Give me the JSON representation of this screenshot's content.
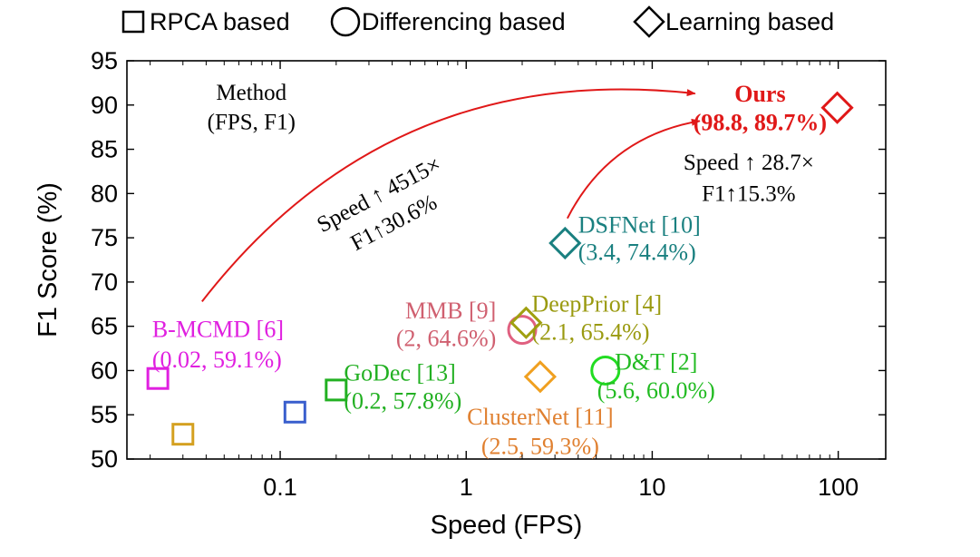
{
  "chart_data": {
    "type": "scatter",
    "xscale": "log",
    "xlim": [
      0.015,
      180
    ],
    "ylim": [
      50,
      95
    ],
    "xlabel": "Speed (FPS)",
    "ylabel": "F1 Score (%)",
    "xticks": [
      0.1,
      1,
      10,
      100
    ],
    "xtick_labels": [
      "0.1",
      "1",
      "10",
      "100"
    ],
    "yticks": [
      50,
      55,
      60,
      65,
      70,
      75,
      80,
      85,
      90,
      95
    ],
    "ytick_labels": [
      "50",
      "55",
      "60",
      "65",
      "70",
      "75",
      "80",
      "85",
      "90",
      "95"
    ],
    "legend": [
      {
        "marker": "square",
        "label": "RPCA based"
      },
      {
        "marker": "circle",
        "label": "Differencing based"
      },
      {
        "marker": "diamond",
        "label": "Learning based"
      }
    ],
    "legend_position": "top",
    "points": [
      {
        "marker": "square",
        "x": 0.022,
        "y": 59.1,
        "color": "#e020e0",
        "label": [
          "B-MCMD [6]",
          "(0.02, 59.1%)"
        ],
        "label_color": "#e020e0",
        "label_anchor": "left",
        "lx": 0.0205,
        "ly": [
          64.7,
          61.3
        ]
      },
      {
        "marker": "square",
        "x": 0.03,
        "y": 52.8,
        "color": "#d4a020"
      },
      {
        "marker": "square",
        "x": 0.12,
        "y": 55.3,
        "color": "#3a5fcd"
      },
      {
        "marker": "square",
        "x": 0.2,
        "y": 57.8,
        "color": "#22b022",
        "label": [
          "GoDec [13]",
          "(0.2, 57.8%)"
        ],
        "label_color": "#22b022",
        "label_anchor": "left",
        "lx": 0.22,
        "ly": [
          59.8,
          56.6
        ]
      },
      {
        "marker": "circle",
        "x": 2.0,
        "y": 64.6,
        "color": "#e06080",
        "label": [
          "MMB [9]",
          "(2, 64.6%)"
        ],
        "label_color": "#d06070",
        "label_anchor": "end",
        "lx": 1.45,
        "ly": [
          66.8,
          63.7
        ]
      },
      {
        "marker": "diamond",
        "x": 2.1,
        "y": 65.4,
        "color": "#a0a010",
        "label": [
          "DeepPrior [4]",
          "(2.1, 65.4%)"
        ],
        "label_color": "#9a9a10",
        "label_anchor": "left",
        "lx": 2.25,
        "ly": [
          67.6,
          64.4
        ]
      },
      {
        "marker": "diamond",
        "x": 2.5,
        "y": 59.3,
        "color": "#f0a020",
        "label": [
          "ClusterNet [11]",
          "(2.5, 59.3%)"
        ],
        "label_color": "#e08030",
        "label_anchor": "middle",
        "lx": 2.5,
        "ly": [
          54.8,
          51.5
        ]
      },
      {
        "marker": "circle",
        "x": 5.6,
        "y": 60.0,
        "color": "#22dd22",
        "label": [
          "D&T [2]",
          "(5.6, 60.0%)"
        ],
        "label_color": "#22bb22",
        "label_anchor": "middle",
        "lx": 10.5,
        "ly": [
          61.0,
          57.8
        ]
      },
      {
        "marker": "diamond",
        "x": 3.4,
        "y": 74.4,
        "color": "#1a8080",
        "label": [
          "DSFNet [10]",
          "(3.4, 74.4%)"
        ],
        "label_color": "#1a8080",
        "label_anchor": "left",
        "lx": 4.0,
        "ly": [
          76.5,
          73.4
        ]
      },
      {
        "marker": "diamond",
        "x": 98.8,
        "y": 89.7,
        "color": "#e01818",
        "label": [
          "Ours",
          "(98.8, 89.7%)"
        ],
        "label_color": "#e01818",
        "label_anchor": "middle",
        "label_bold": true,
        "lx": 38,
        "ly": [
          91.3,
          88.1
        ]
      }
    ],
    "annotations": [
      {
        "text": [
          "Method",
          "(FPS, F1)"
        ],
        "x": 0.07,
        "y": [
          91.5,
          88.2
        ],
        "anchor": "middle",
        "color": "#000000"
      },
      {
        "text": [
          "Speed ↑ 4515×",
          "F1↑30.6%"
        ],
        "x": 0.37,
        "y": [
          80.2,
          76.6
        ],
        "anchor": "middle",
        "rotate": -28,
        "color": "#000000"
      },
      {
        "text": [
          "Speed ↑ 28.7×",
          "F1↑15.3%"
        ],
        "x": 33,
        "y": [
          83.6,
          80.1
        ],
        "anchor": "middle",
        "color": "#000000"
      }
    ],
    "arrows": [
      {
        "from": [
          0.038,
          67.8
        ],
        "to": [
          17,
          91.3
        ],
        "color": "#e01818",
        "bend": 0.28
      },
      {
        "from": [
          3.5,
          77.2
        ],
        "to": [
          18,
          88.2
        ],
        "color": "#e01818",
        "bend": 0.25
      }
    ]
  }
}
